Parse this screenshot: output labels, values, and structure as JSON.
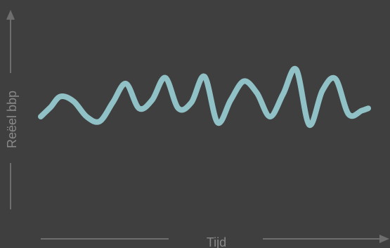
{
  "chart_data": {
    "type": "line",
    "xlabel": "Tijd",
    "ylabel": "Reëel bbp",
    "ylim": [
      0,
      100
    ],
    "grid": false,
    "legend": "none",
    "series": [
      {
        "color": "#8fc1c6",
        "x": [
          0,
          3,
          6,
          10,
          14,
          18,
          22,
          26,
          30,
          34,
          38,
          42,
          46,
          50,
          54,
          58,
          62,
          66,
          70,
          74,
          78,
          82,
          86,
          90,
          94,
          98,
          100
        ],
        "values": [
          50,
          58,
          67,
          63,
          50,
          46,
          62,
          78,
          57,
          64,
          83,
          57,
          62,
          84,
          45,
          64,
          80,
          70,
          50,
          69,
          90,
          43,
          72,
          82,
          52,
          55,
          57
        ]
      }
    ]
  },
  "colors": {
    "background": "#3f3f3f",
    "axis": "#6e6e6e",
    "label": "#8a8a8a",
    "line": "#8fc1c6"
  }
}
